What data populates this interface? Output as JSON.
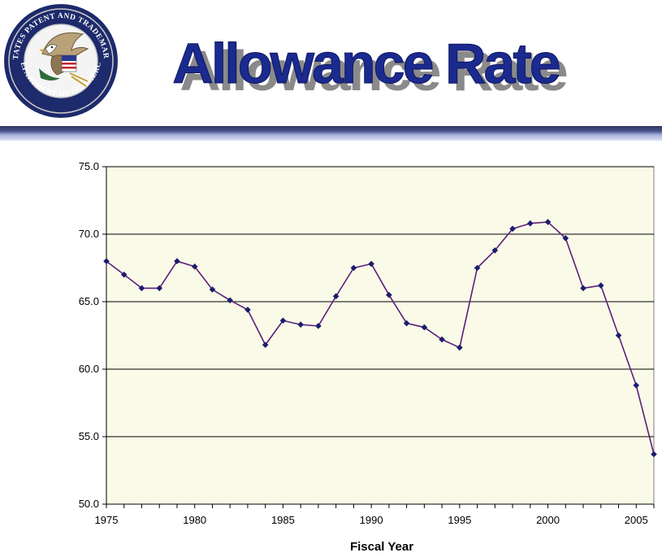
{
  "header": {
    "title": "Allowance Rate",
    "seal_text_top": "UNITED STATES PATENT AND TRADEMARK OFFICE",
    "seal_text_bottom": "DEPARTMENT OF COMMERCE",
    "colors": {
      "title_fill": "#1a2a8f",
      "title_shadow": "#8a8a8a",
      "rule_dark": "#2c355f",
      "rule_light": "#a9b0d8"
    }
  },
  "chart_data": {
    "type": "line",
    "title": "",
    "xlabel": "Fiscal Year",
    "ylabel": "",
    "xlim": [
      1975,
      2006
    ],
    "ylim": [
      50,
      75
    ],
    "x_ticks": [
      1975,
      1980,
      1985,
      1990,
      1995,
      2000,
      2005
    ],
    "x_tick_labels": [
      "1975",
      "1980",
      "1985",
      "1990",
      "1995",
      "2000",
      "2005"
    ],
    "y_ticks": [
      50,
      55,
      60,
      65,
      70,
      75
    ],
    "y_tick_labels": [
      "50.0",
      "55.0",
      "60.0",
      "65.0",
      "70.0",
      "75.0"
    ],
    "grid": "horizontal",
    "legend": "none",
    "series": [
      {
        "color": "#5a1f7a",
        "marker_color": "#1c1c6e",
        "x": [
          1975,
          1976,
          1977,
          1978,
          1979,
          1980,
          1981,
          1982,
          1983,
          1984,
          1985,
          1986,
          1987,
          1988,
          1989,
          1990,
          1991,
          1992,
          1993,
          1994,
          1995,
          1996,
          1997,
          1998,
          1999,
          2000,
          2001,
          2002,
          2003,
          2004,
          2005,
          2006
        ],
        "y": [
          68.0,
          67.0,
          66.0,
          66.0,
          68.0,
          67.6,
          65.9,
          65.1,
          64.4,
          61.8,
          63.6,
          63.3,
          63.2,
          65.4,
          67.5,
          67.8,
          65.5,
          63.4,
          63.1,
          62.2,
          61.6,
          67.5,
          68.8,
          70.4,
          70.8,
          70.9,
          69.7,
          66.0,
          66.2,
          62.5,
          58.8,
          53.7
        ]
      }
    ],
    "colors": {
      "plot_bg": "#fafae8",
      "grid": "#000000",
      "axis": "#000000"
    }
  }
}
